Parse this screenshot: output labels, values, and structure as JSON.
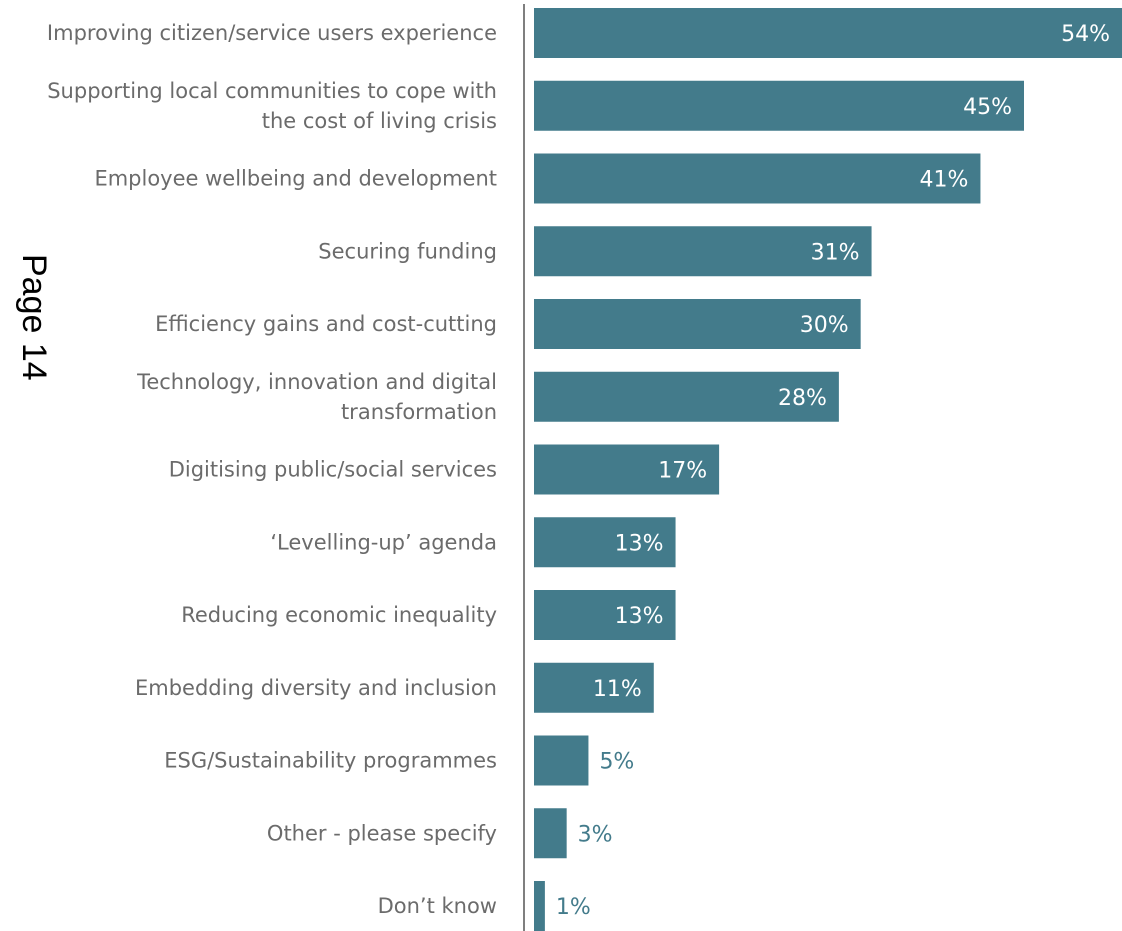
{
  "page_stamp": "Page 14",
  "chart_data": {
    "type": "bar",
    "orientation": "horizontal",
    "categories": [
      [
        "Improving citizen/service users experience"
      ],
      [
        "Supporting local communities to cope with",
        "the cost of living crisis"
      ],
      [
        "Employee wellbeing and development"
      ],
      [
        "Securing funding"
      ],
      [
        "Efficiency gains and cost-cutting"
      ],
      [
        "Technology, innovation and digital",
        "transformation"
      ],
      [
        "Digitising public/social services"
      ],
      [
        "‘Levelling-up’ agenda"
      ],
      [
        "Reducing economic inequality"
      ],
      [
        "Embedding diversity and inclusion"
      ],
      [
        "ESG/Sustainability programmes"
      ],
      [
        "Other - please specify"
      ],
      [
        "Don’t know"
      ]
    ],
    "values": [
      54,
      45,
      41,
      31,
      30,
      28,
      17,
      13,
      13,
      11,
      5,
      3,
      1
    ],
    "value_labels": [
      "54%",
      "45%",
      "41%",
      "31%",
      "30%",
      "28%",
      "17%",
      "13%",
      "13%",
      "11%",
      "5%",
      "3%",
      "1%"
    ],
    "unit": "%",
    "xlim": [
      0,
      54
    ],
    "grid": false,
    "legend": "none",
    "bar_color": "#437b8b",
    "label_inside_color": "#ffffff",
    "label_outside_color": "#437b8b",
    "category_color": "#6b6b6b",
    "axis_color": "#555555"
  }
}
